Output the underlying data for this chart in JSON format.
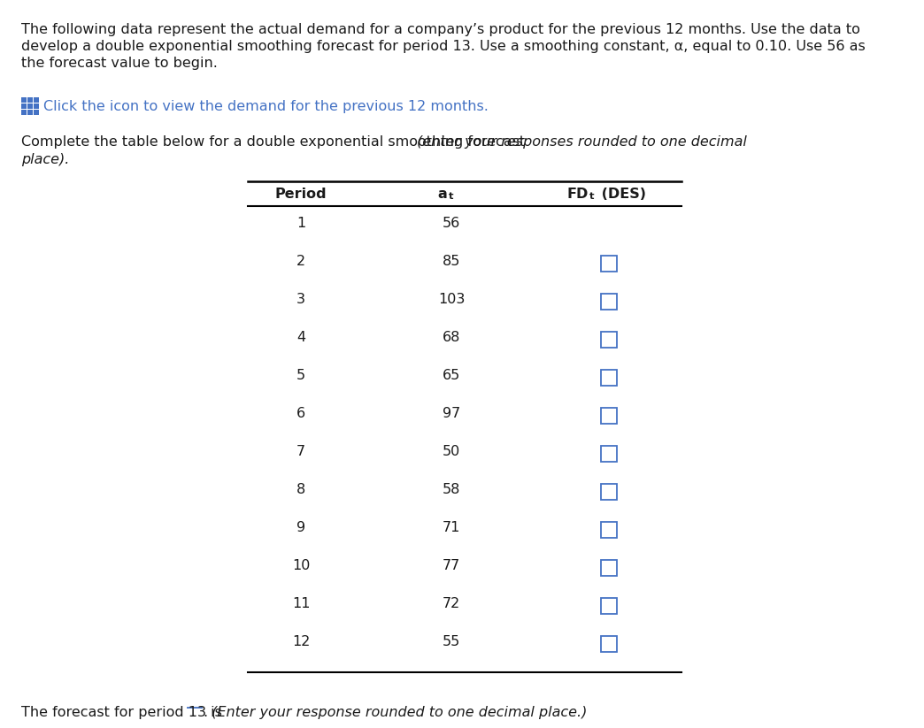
{
  "title_line1": "The following data represent the actual demand for a company’s product for the previous 12 months. Use the data to",
  "title_line2": "develop a double exponential smoothing forecast for period 13. Use a smoothing constant, α, equal to 0.10. Use 56 as",
  "title_line3": "the forecast value to begin.",
  "icon_text": "Click the icon to view the demand for the previous 12 months.",
  "table_intro_normal": "Complete the table below for a double exponential smoothing forecast ",
  "table_intro_italic": "(enter your responses rounded to one decimal",
  "table_intro_italic2": "place).",
  "periods": [
    1,
    2,
    3,
    4,
    5,
    6,
    7,
    8,
    9,
    10,
    11,
    12
  ],
  "at_values": [
    56,
    85,
    103,
    68,
    65,
    97,
    50,
    58,
    71,
    77,
    72,
    55
  ],
  "footer_normal": "The forecast for period 13 is",
  "footer_period": ".",
  "footer_italic": " (Enter your response rounded to one decimal place.)",
  "bg_color": "#ffffff",
  "text_color": "#1a1a1a",
  "icon_color": "#4472c4",
  "checkbox_color": "#4472c4",
  "table_line_color": "#000000",
  "fontsize": 11.5
}
